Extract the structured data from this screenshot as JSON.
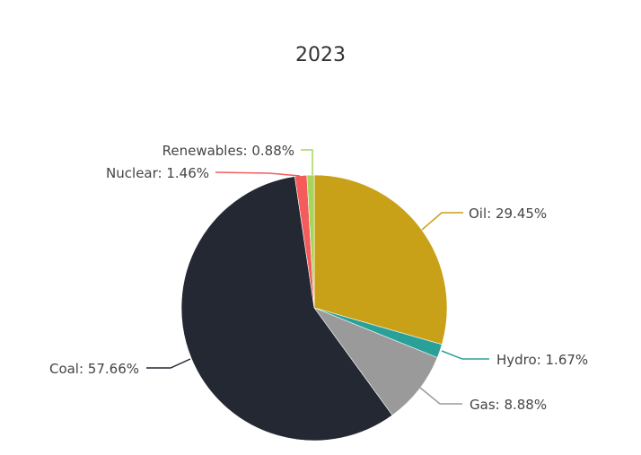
{
  "chart_data": {
    "type": "pie",
    "title": "2023",
    "start_angle": "top",
    "direction": "clockwise",
    "slices": [
      {
        "label": "Oil",
        "value": 29.45,
        "display": "Oil: 29.45%",
        "color": "#c9a118"
      },
      {
        "label": "Hydro",
        "value": 1.67,
        "display": "Hydro: 1.67%",
        "color": "#2aa198"
      },
      {
        "label": "Gas",
        "value": 8.88,
        "display": "Gas: 8.88%",
        "color": "#9a9a9a"
      },
      {
        "label": "Coal",
        "value": 57.66,
        "display": "Coal: 57.66%",
        "color": "#232833"
      },
      {
        "label": "Nuclear",
        "value": 1.46,
        "display": "Nuclear: 1.46%",
        "color": "#f45b5b"
      },
      {
        "label": "Renewables",
        "value": 0.88,
        "display": "Renewables: 0.88%",
        "color": "#a4d65e"
      }
    ]
  }
}
